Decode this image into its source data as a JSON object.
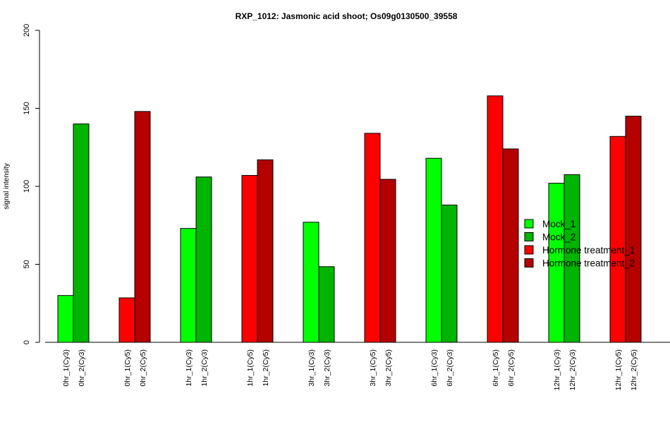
{
  "chart_data": {
    "type": "bar",
    "title": "RXP_1012: Jasmonic acid shoot; Os09g0130500_39558",
    "xlabel": "",
    "ylabel": "signal intensity",
    "ylim": [
      0,
      200
    ],
    "yticks": [
      0,
      50,
      100,
      150,
      200
    ],
    "grid": false,
    "legend_position": "right",
    "categories": [
      "0hr_1(Cy3)",
      "0hr_2(Cy3)",
      "0hr_1(Cy5)",
      "0hr_2(Cy5)",
      "1hr_1(Cy3)",
      "1hr_2(Cy3)",
      "1hr_1(Cy5)",
      "1hr_2(Cy5)",
      "3hr_1(Cy3)",
      "3hr_2(Cy3)",
      "3hr_1(Cy5)",
      "3hr_2(Cy5)",
      "6hr_1(Cy3)",
      "6hr_2(Cy3)",
      "6hr_1(Cy5)",
      "6hr_2(Cy5)",
      "12hr_1(Cy3)",
      "12hr_2(Cy3)",
      "12hr_1(Cy5)",
      "12hr_2(Cy5)"
    ],
    "values": [
      30,
      140,
      28.5,
      148,
      73,
      106,
      107,
      117,
      77,
      48.5,
      134,
      104.5,
      118,
      88,
      158,
      124,
      102,
      107.5,
      132,
      145
    ],
    "bar_series": [
      0,
      1,
      2,
      3,
      0,
      1,
      2,
      3,
      0,
      1,
      2,
      3,
      0,
      1,
      2,
      3,
      0,
      1,
      2,
      3
    ],
    "series": [
      {
        "name": "Mock_1",
        "color": "#00ff00"
      },
      {
        "name": "Mock_2",
        "color": "#00b400"
      },
      {
        "name": "Hormone treatment_1",
        "color": "#ff0000"
      },
      {
        "name": "Hormone treatment_2",
        "color": "#b40000"
      }
    ]
  }
}
